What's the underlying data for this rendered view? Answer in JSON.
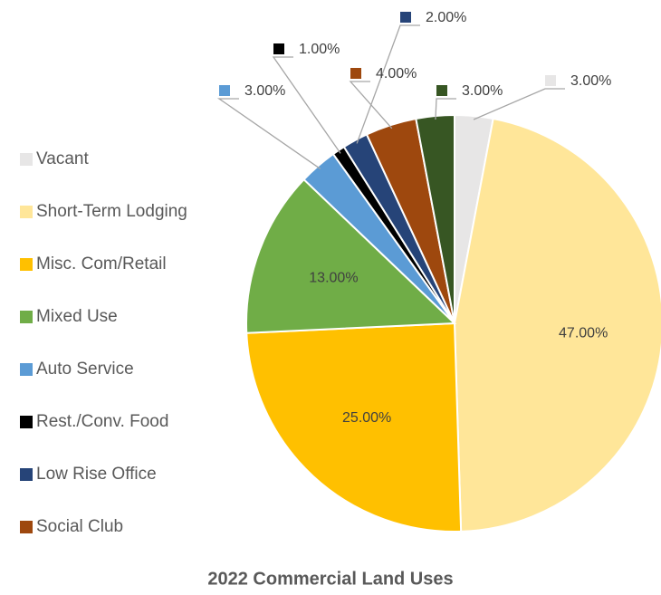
{
  "chart_data": {
    "type": "pie",
    "title": "2022 Commercial Land Uses",
    "categories": [
      "Vacant",
      "Short-Term Lodging",
      "Misc. Com/Retail",
      "Mixed Use",
      "Auto Service",
      "Rest./Conv. Food",
      "Low Rise Office",
      "Social Club",
      null
    ],
    "values": [
      3,
      47,
      25,
      13,
      3,
      1,
      2,
      4,
      3
    ],
    "value_labels": [
      "3.00%",
      "47.00%",
      "25.00%",
      "13.00%",
      "3.00%",
      "1.00%",
      "2.00%",
      "4.00%",
      "3.00%"
    ],
    "colors": [
      "#e7e6e6",
      "#ffe699",
      "#ffc000",
      "#70ad47",
      "#5b9bd5",
      "#000000",
      "#264478",
      "#9e480e",
      "#375623"
    ],
    "legend": "left"
  }
}
